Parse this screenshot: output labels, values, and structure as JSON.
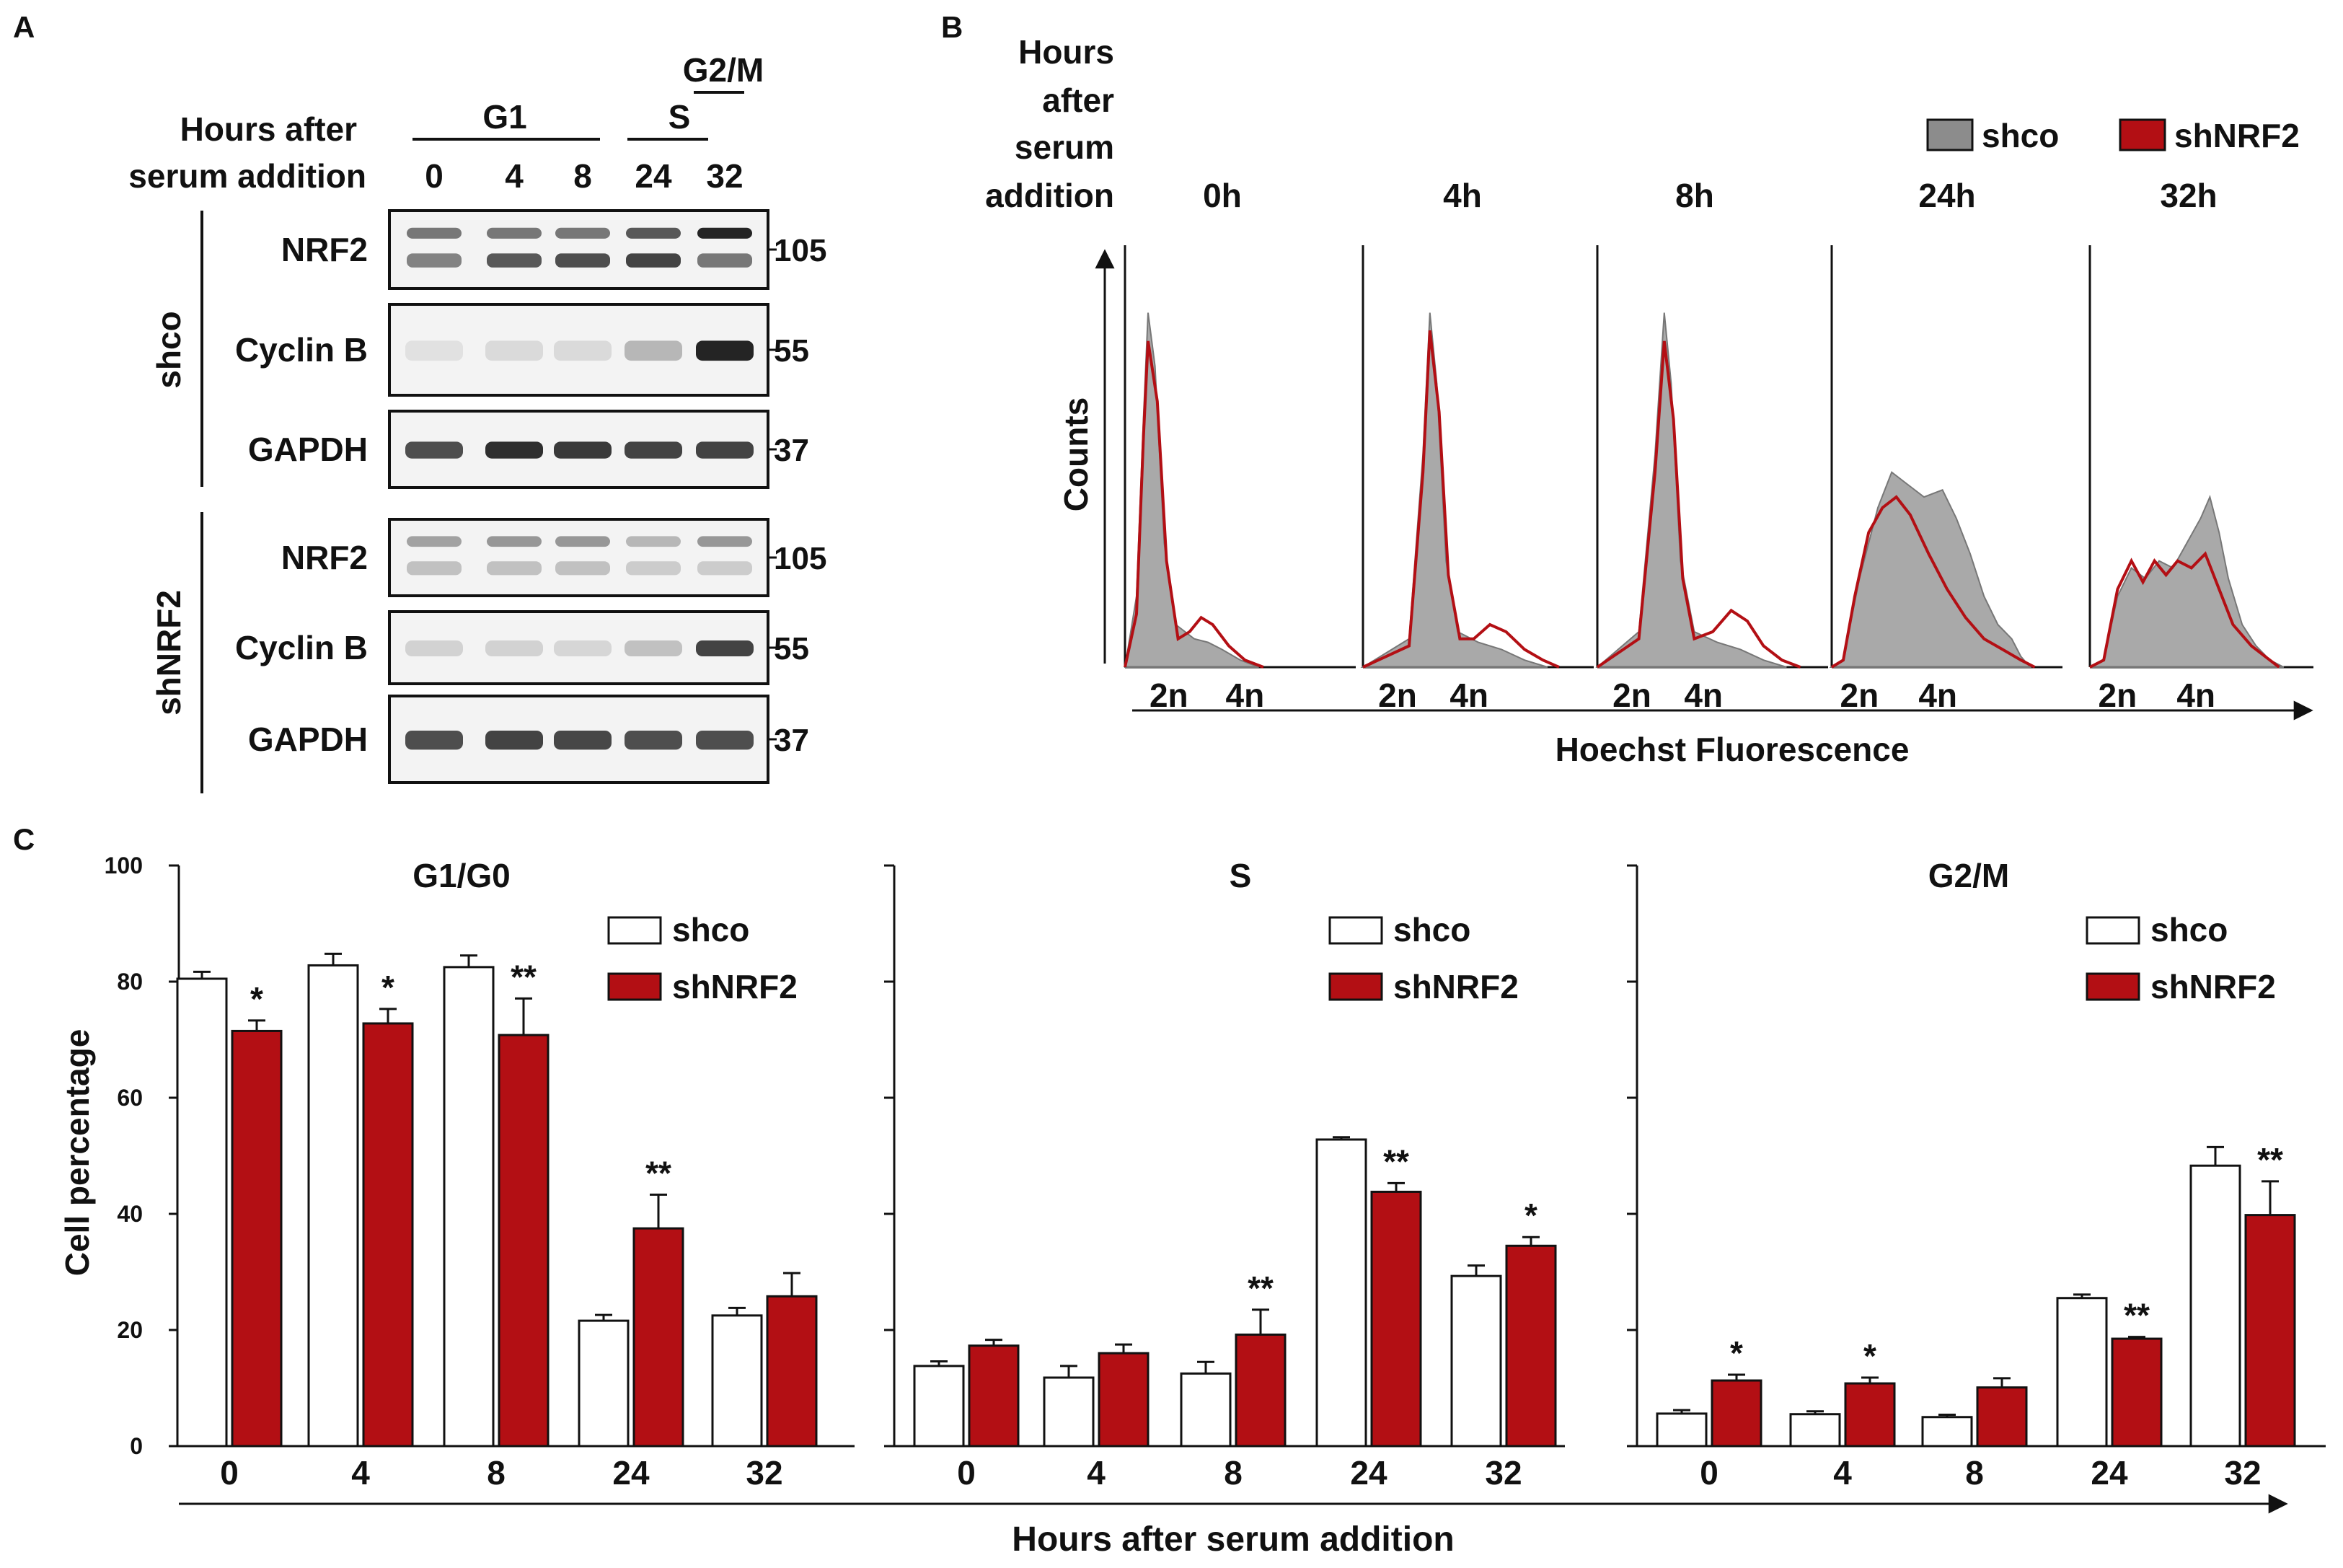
{
  "panel_labels": [
    "A",
    "B",
    "C"
  ],
  "panel_a": {
    "header": [
      "Hours after",
      "serum addition"
    ],
    "phases": [
      {
        "label": "G1"
      },
      {
        "label": "S"
      },
      {
        "label": "G2/M"
      }
    ],
    "hours": [
      "0",
      "4",
      "8",
      "24",
      "32"
    ],
    "groups": [
      {
        "name": "shco",
        "blots": [
          {
            "label": "NRF2",
            "marker": "105",
            "intensity_upper": [
              0.55,
              0.55,
              0.55,
              0.7,
              0.95
            ],
            "intensity_lower": [
              0.5,
              0.7,
              0.75,
              0.8,
              0.55
            ]
          },
          {
            "label": "Cyclin B",
            "marker": "55",
            "intensity": [
              0.05,
              0.08,
              0.08,
              0.25,
              0.95
            ]
          },
          {
            "label": "GAPDH",
            "marker": "37",
            "intensity": [
              0.75,
              0.9,
              0.85,
              0.8,
              0.8
            ]
          }
        ]
      },
      {
        "name": "shNRF2",
        "blots": [
          {
            "label": "NRF2",
            "marker": "105",
            "intensity_upper": [
              0.35,
              0.4,
              0.4,
              0.25,
              0.4
            ],
            "intensity_lower": [
              0.2,
              0.2,
              0.2,
              0.15,
              0.15
            ]
          },
          {
            "label": "Cyclin B",
            "marker": "55",
            "intensity": [
              0.12,
              0.12,
              0.1,
              0.2,
              0.8
            ]
          },
          {
            "label": "GAPDH",
            "marker": "37",
            "intensity": [
              0.75,
              0.8,
              0.78,
              0.75,
              0.75
            ]
          }
        ]
      }
    ]
  },
  "panel_b": {
    "header": [
      "Hours",
      "after",
      "serum",
      "addition"
    ],
    "legend": [
      {
        "label": "shco",
        "color": "#8c8c8c"
      },
      {
        "label": "shNRF2",
        "color": "#b30f14"
      }
    ],
    "ylabel": "Counts",
    "xlabel": "Hoechst Fluorescence",
    "tick_labels": [
      "2n",
      "4n"
    ],
    "timepoints": [
      {
        "label": "0h",
        "shco": [
          [
            0,
            0
          ],
          [
            0.05,
            0.2
          ],
          [
            0.08,
            0.7
          ],
          [
            0.1,
            1.0
          ],
          [
            0.13,
            0.85
          ],
          [
            0.17,
            0.35
          ],
          [
            0.22,
            0.12
          ],
          [
            0.3,
            0.08
          ],
          [
            0.36,
            0.07
          ],
          [
            0.42,
            0.05
          ],
          [
            0.5,
            0.02
          ],
          [
            0.58,
            0
          ]
        ],
        "shNRF2": [
          [
            0,
            0
          ],
          [
            0.05,
            0.15
          ],
          [
            0.08,
            0.65
          ],
          [
            0.1,
            0.92
          ],
          [
            0.14,
            0.75
          ],
          [
            0.18,
            0.3
          ],
          [
            0.23,
            0.08
          ],
          [
            0.28,
            0.1
          ],
          [
            0.33,
            0.14
          ],
          [
            0.38,
            0.12
          ],
          [
            0.45,
            0.06
          ],
          [
            0.52,
            0.02
          ],
          [
            0.6,
            0
          ]
        ]
      },
      {
        "label": "4h",
        "shco": [
          [
            0,
            0
          ],
          [
            0.2,
            0.08
          ],
          [
            0.26,
            0.6
          ],
          [
            0.29,
            1.0
          ],
          [
            0.32,
            0.8
          ],
          [
            0.36,
            0.3
          ],
          [
            0.41,
            0.1
          ],
          [
            0.5,
            0.07
          ],
          [
            0.6,
            0.05
          ],
          [
            0.7,
            0.02
          ],
          [
            0.8,
            0
          ]
        ],
        "shNRF2": [
          [
            0,
            0
          ],
          [
            0.2,
            0.06
          ],
          [
            0.26,
            0.55
          ],
          [
            0.29,
            0.95
          ],
          [
            0.33,
            0.72
          ],
          [
            0.37,
            0.26
          ],
          [
            0.42,
            0.08
          ],
          [
            0.48,
            0.08
          ],
          [
            0.55,
            0.12
          ],
          [
            0.62,
            0.1
          ],
          [
            0.7,
            0.05
          ],
          [
            0.78,
            0.02
          ],
          [
            0.85,
            0
          ]
        ]
      },
      {
        "label": "8h",
        "shco": [
          [
            0,
            0
          ],
          [
            0.18,
            0.1
          ],
          [
            0.25,
            0.6
          ],
          [
            0.29,
            1.0
          ],
          [
            0.32,
            0.8
          ],
          [
            0.36,
            0.3
          ],
          [
            0.42,
            0.1
          ],
          [
            0.52,
            0.07
          ],
          [
            0.62,
            0.05
          ],
          [
            0.72,
            0.02
          ],
          [
            0.82,
            0
          ]
        ],
        "shNRF2": [
          [
            0,
            0
          ],
          [
            0.18,
            0.08
          ],
          [
            0.25,
            0.55
          ],
          [
            0.29,
            0.92
          ],
          [
            0.33,
            0.7
          ],
          [
            0.37,
            0.25
          ],
          [
            0.42,
            0.08
          ],
          [
            0.5,
            0.1
          ],
          [
            0.58,
            0.16
          ],
          [
            0.65,
            0.13
          ],
          [
            0.72,
            0.06
          ],
          [
            0.8,
            0.02
          ],
          [
            0.88,
            0
          ]
        ]
      },
      {
        "label": "24h",
        "shco": [
          [
            0,
            0
          ],
          [
            0.05,
            0.02
          ],
          [
            0.12,
            0.25
          ],
          [
            0.2,
            0.45
          ],
          [
            0.26,
            0.55
          ],
          [
            0.32,
            0.52
          ],
          [
            0.4,
            0.48
          ],
          [
            0.48,
            0.5
          ],
          [
            0.54,
            0.42
          ],
          [
            0.6,
            0.32
          ],
          [
            0.66,
            0.2
          ],
          [
            0.72,
            0.12
          ],
          [
            0.78,
            0.08
          ],
          [
            0.82,
            0.03
          ],
          [
            0.86,
            0
          ]
        ],
        "shNRF2": [
          [
            0,
            0
          ],
          [
            0.05,
            0.02
          ],
          [
            0.1,
            0.2
          ],
          [
            0.16,
            0.38
          ],
          [
            0.22,
            0.45
          ],
          [
            0.28,
            0.48
          ],
          [
            0.34,
            0.43
          ],
          [
            0.42,
            0.32
          ],
          [
            0.5,
            0.22
          ],
          [
            0.58,
            0.14
          ],
          [
            0.66,
            0.08
          ],
          [
            0.74,
            0.05
          ],
          [
            0.82,
            0.02
          ],
          [
            0.88,
            0
          ]
        ]
      },
      {
        "label": "32h",
        "shco": [
          [
            0,
            0
          ],
          [
            0.06,
            0.02
          ],
          [
            0.12,
            0.2
          ],
          [
            0.18,
            0.28
          ],
          [
            0.24,
            0.25
          ],
          [
            0.3,
            0.3
          ],
          [
            0.36,
            0.28
          ],
          [
            0.42,
            0.35
          ],
          [
            0.48,
            0.42
          ],
          [
            0.52,
            0.48
          ],
          [
            0.56,
            0.38
          ],
          [
            0.6,
            0.25
          ],
          [
            0.66,
            0.12
          ],
          [
            0.72,
            0.06
          ],
          [
            0.78,
            0.02
          ],
          [
            0.84,
            0
          ]
        ],
        "shNRF2": [
          [
            0,
            0
          ],
          [
            0.06,
            0.02
          ],
          [
            0.12,
            0.22
          ],
          [
            0.18,
            0.3
          ],
          [
            0.23,
            0.24
          ],
          [
            0.28,
            0.3
          ],
          [
            0.33,
            0.26
          ],
          [
            0.38,
            0.3
          ],
          [
            0.44,
            0.28
          ],
          [
            0.5,
            0.32
          ],
          [
            0.56,
            0.22
          ],
          [
            0.62,
            0.12
          ],
          [
            0.7,
            0.06
          ],
          [
            0.76,
            0.03
          ],
          [
            0.82,
            0
          ]
        ]
      }
    ]
  },
  "chart_data": {
    "type": "bar",
    "ylabel": "Cell percentage",
    "xlabel": "Hours after serum addition",
    "ylim": [
      0,
      100
    ],
    "yticks": [
      0,
      20,
      40,
      60,
      80,
      100
    ],
    "categories": [
      "0",
      "4",
      "8",
      "24",
      "32"
    ],
    "legend": [
      {
        "label": "shco",
        "color": "#ffffff"
      },
      {
        "label": "shNRF2",
        "color": "#b30f14"
      }
    ],
    "legend_position": "top-right",
    "panels": [
      {
        "title": "G1/G0",
        "series": [
          {
            "name": "shco",
            "values": [
              80.5,
              82.8,
              82.5,
              21.6,
              22.5
            ],
            "errors": [
              1.2,
              2.0,
              2.0,
              1.0,
              1.3
            ]
          },
          {
            "name": "shNRF2",
            "values": [
              71.5,
              72.8,
              70.8,
              37.5,
              25.8
            ],
            "errors": [
              1.8,
              2.5,
              6.3,
              5.8,
              4.0
            ]
          }
        ],
        "annotations": [
          "*",
          "*",
          "**",
          "**",
          ""
        ]
      },
      {
        "title": "S",
        "series": [
          {
            "name": "shco",
            "values": [
              13.8,
              11.8,
              12.5,
              52.8,
              29.3
            ],
            "errors": [
              0.8,
              2.0,
              2.0,
              0.4,
              1.8
            ]
          },
          {
            "name": "shNRF2",
            "values": [
              17.3,
              16.0,
              19.2,
              43.8,
              34.5
            ],
            "errors": [
              1.0,
              1.5,
              4.3,
              1.5,
              1.5
            ]
          }
        ],
        "annotations": [
          "",
          "",
          "**",
          "**",
          "*"
        ]
      },
      {
        "title": "G2/M",
        "series": [
          {
            "name": "shco",
            "values": [
              5.6,
              5.5,
              5.0,
              25.5,
              48.3
            ],
            "errors": [
              0.6,
              0.5,
              0.4,
              0.6,
              3.2
            ]
          },
          {
            "name": "shNRF2",
            "values": [
              11.3,
              10.8,
              10.1,
              18.5,
              39.8
            ],
            "errors": [
              1.0,
              1.0,
              1.6,
              0.3,
              5.8
            ]
          }
        ],
        "annotations": [
          "*",
          "*",
          "",
          "**",
          "**"
        ]
      }
    ]
  }
}
